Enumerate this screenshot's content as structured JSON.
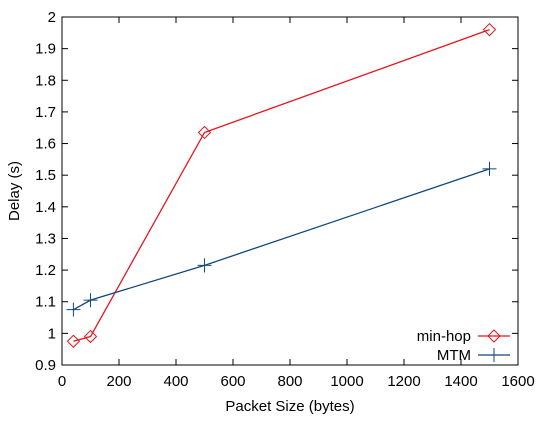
{
  "chart_data": {
    "type": "line",
    "title": "",
    "xlabel": "Packet Size (bytes)",
    "ylabel": "Delay (s)",
    "xlim": [
      0,
      1600
    ],
    "ylim": [
      0.9,
      2
    ],
    "xticks": [
      0,
      200,
      400,
      600,
      800,
      1000,
      1200,
      1400,
      1600
    ],
    "yticks": [
      0.9,
      1,
      1.1,
      1.2,
      1.3,
      1.4,
      1.5,
      1.6,
      1.7,
      1.8,
      1.9,
      2
    ],
    "xtick_labels": [
      "0",
      "200",
      "400",
      "600",
      "800",
      "1000",
      "1200",
      "1400",
      "1600"
    ],
    "ytick_labels": [
      "0.9",
      "1",
      "1.1",
      "1.2",
      "1.3",
      "1.4",
      "1.5",
      "1.6",
      "1.7",
      "1.8",
      "1.9",
      "2"
    ],
    "grid": false,
    "legend_position": "bottom-right",
    "series": [
      {
        "name": "min-hop",
        "color": "#e8141c",
        "marker": "diamond",
        "x": [
          40,
          100,
          500,
          1500
        ],
        "y": [
          0.975,
          0.99,
          1.635,
          1.96
        ]
      },
      {
        "name": "MTM",
        "color": "#13467e",
        "marker": "plus",
        "x": [
          40,
          100,
          500,
          1500
        ],
        "y": [
          1.075,
          1.105,
          1.215,
          1.52
        ]
      }
    ]
  }
}
